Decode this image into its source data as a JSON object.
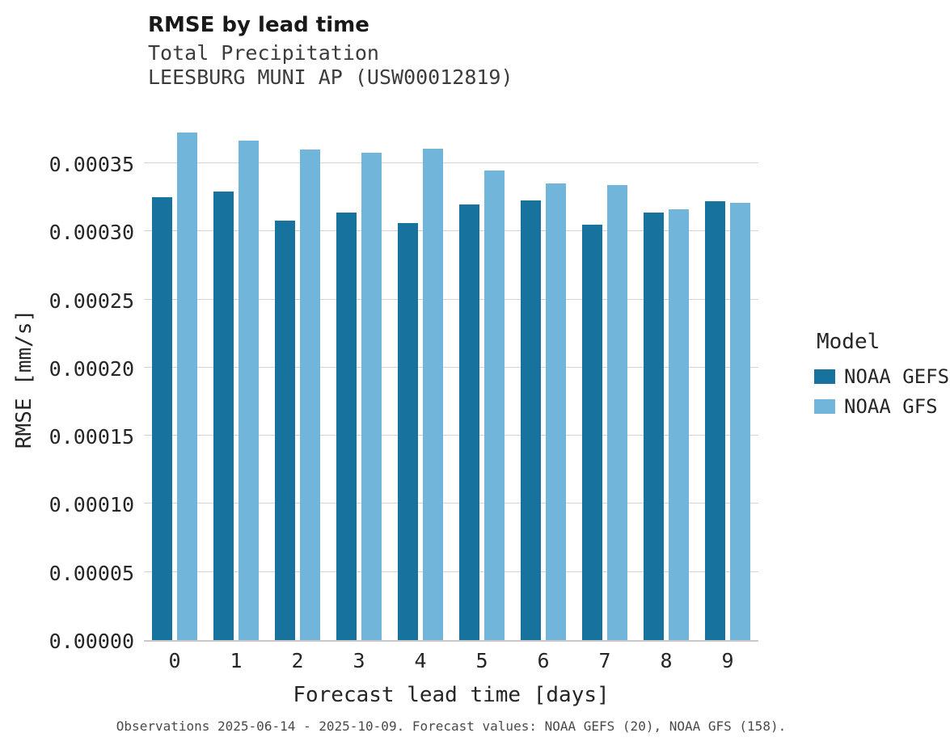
{
  "chart_data": {
    "type": "bar",
    "title": "RMSE by lead time",
    "subtitle": "Total Precipitation",
    "station": "LEESBURG MUNI AP (USW00012819)",
    "xlabel": "Forecast lead time [days]",
    "ylabel": "RMSE [mm/s]",
    "categories": [
      "0",
      "1",
      "2",
      "3",
      "4",
      "5",
      "6",
      "7",
      "8",
      "9"
    ],
    "ylim": [
      0,
      0.000385
    ],
    "grid": "horizontal",
    "yticks": [
      {
        "value": 0.0,
        "label": "0.00000"
      },
      {
        "value": 5e-05,
        "label": "0.00005"
      },
      {
        "value": 0.0001,
        "label": "0.00010"
      },
      {
        "value": 0.00015,
        "label": "0.00015"
      },
      {
        "value": 0.0002,
        "label": "0.00020"
      },
      {
        "value": 0.00025,
        "label": "0.00025"
      },
      {
        "value": 0.0003,
        "label": "0.00030"
      },
      {
        "value": 0.00035,
        "label": "0.00035"
      }
    ],
    "legend": {
      "title": "Model",
      "position": "right"
    },
    "series": [
      {
        "name": "NOAA GEFS",
        "color": "#17729e",
        "values": [
          0.000326,
          0.00033,
          0.000309,
          0.000315,
          0.000307,
          0.000321,
          0.000324,
          0.000306,
          0.000315,
          0.000323
        ]
      },
      {
        "name": "NOAA GFS",
        "color": "#72b5da",
        "values": [
          0.000374,
          0.000368,
          0.000361,
          0.000359,
          0.000362,
          0.000346,
          0.000336,
          0.000335,
          0.000317,
          0.000322
        ]
      }
    ]
  },
  "caption": "Observations 2025-06-14 - 2025-10-09. Forecast values: NOAA GEFS (20), NOAA GFS (158)."
}
